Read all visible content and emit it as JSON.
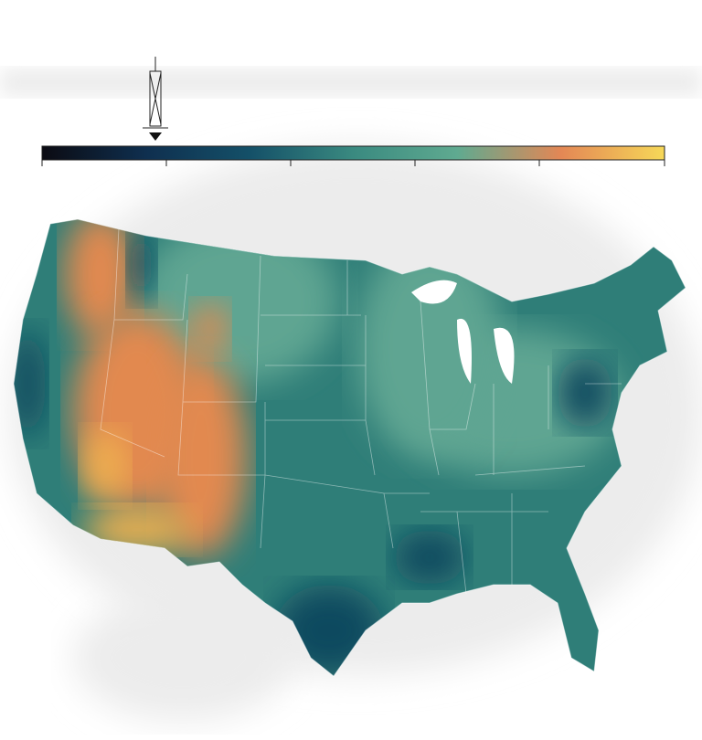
{
  "legend": {
    "colors": [
      "#0b0b12",
      "#0f2f4f",
      "#145068",
      "#3a8a80",
      "#5faa90",
      "#e38755",
      "#f6d858"
    ]
  },
  "map": {
    "base_color": "#2f7e78",
    "light_color": "#5fa592",
    "warm_color": "#e2894f",
    "hot_color": "#f0b050",
    "cool_color": "#0f4a5e",
    "land_color": "#ececec"
  }
}
